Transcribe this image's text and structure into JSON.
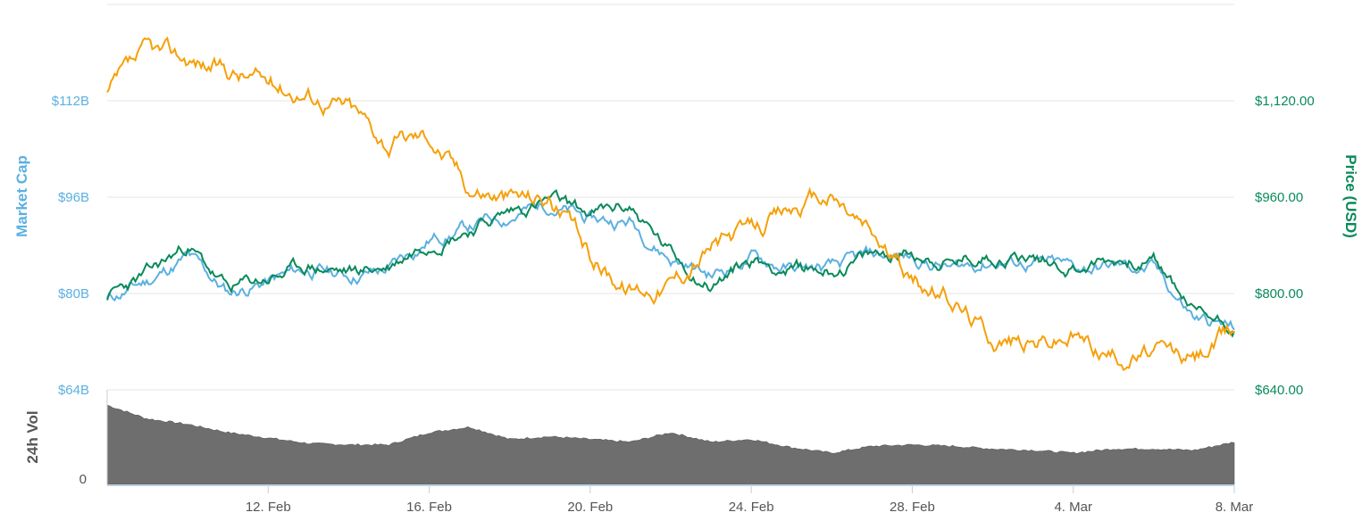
{
  "chart_data": {
    "type": "line",
    "x_start": "2018-02-08",
    "x_end": "2018-03-08",
    "x_ticks": [
      "12. Feb",
      "16. Feb",
      "20. Feb",
      "24. Feb",
      "28. Feb",
      "4. Mar",
      "8. Mar"
    ],
    "left_axis": {
      "label": "Market Cap",
      "ticks": [
        "$64B",
        "$80B",
        "$96B",
        "$112B"
      ],
      "range": [
        64,
        112
      ],
      "color": "#5bb0e0"
    },
    "right_axis": {
      "label": "Price (USD)",
      "ticks": [
        "$640.00",
        "$800.00",
        "$960.00",
        "$1,120.00"
      ],
      "range": [
        640,
        1120
      ],
      "color": "#0a8a5a"
    },
    "volume_axis": {
      "label": "24h Vol",
      "ticks": [
        "0"
      ],
      "color": "#6e6e6e"
    },
    "series": [
      {
        "key": "market_cap",
        "axis": "left",
        "color": "#5bb0e0",
        "x": [
          "2018-02-08",
          "2018-02-09",
          "2018-02-10",
          "2018-02-11",
          "2018-02-12",
          "2018-02-13",
          "2018-02-14",
          "2018-02-15",
          "2018-02-16",
          "2018-02-17",
          "2018-02-18",
          "2018-02-19",
          "2018-02-20",
          "2018-02-21",
          "2018-02-22",
          "2018-02-23",
          "2018-02-24",
          "2018-02-25",
          "2018-02-26",
          "2018-02-27",
          "2018-02-28",
          "2018-03-01",
          "2018-03-02",
          "2018-03-03",
          "2018-03-04",
          "2018-03-05",
          "2018-03-06",
          "2018-03-07",
          "2018-03-08"
        ],
        "values": [
          79,
          82,
          86,
          80,
          82,
          84,
          83,
          84,
          89,
          91,
          93,
          95,
          92,
          92,
          86,
          83,
          86,
          84,
          84,
          86,
          86,
          84,
          85.5,
          85,
          84,
          84.5,
          84,
          76,
          74
        ]
      },
      {
        "key": "price",
        "axis": "right",
        "color": "#0a8a5a",
        "x": [
          "2018-02-08",
          "2018-02-09",
          "2018-02-10",
          "2018-02-11",
          "2018-02-12",
          "2018-02-13",
          "2018-02-14",
          "2018-02-15",
          "2018-02-16",
          "2018-02-17",
          "2018-02-18",
          "2018-02-19",
          "2018-02-20",
          "2018-02-21",
          "2018-02-22",
          "2018-02-23",
          "2018-02-24",
          "2018-02-25",
          "2018-02-26",
          "2018-02-27",
          "2018-02-28",
          "2018-03-01",
          "2018-03-02",
          "2018-03-03",
          "2018-03-04",
          "2018-03-05",
          "2018-03-06",
          "2018-03-07",
          "2018-03-08"
        ],
        "values": [
          795,
          830,
          880,
          805,
          825,
          845,
          835,
          845,
          890,
          910,
          935,
          955,
          930,
          945,
          865,
          815,
          855,
          840,
          840,
          860,
          870,
          850,
          865,
          860,
          845,
          855,
          855,
          770,
          750
        ]
      },
      {
        "key": "volume",
        "axis": "volume",
        "type": "area",
        "color": "#6e6e6e",
        "x": [
          "2018-02-08",
          "2018-02-09",
          "2018-02-10",
          "2018-02-11",
          "2018-02-12",
          "2018-02-13",
          "2018-02-14",
          "2018-02-15",
          "2018-02-16",
          "2018-02-17",
          "2018-02-18",
          "2018-02-19",
          "2018-02-20",
          "2018-02-21",
          "2018-02-22",
          "2018-02-23",
          "2018-02-24",
          "2018-02-25",
          "2018-02-26",
          "2018-02-27",
          "2018-02-28",
          "2018-03-01",
          "2018-03-02",
          "2018-03-03",
          "2018-03-04",
          "2018-03-05",
          "2018-03-06",
          "2018-03-07",
          "2018-03-08"
        ],
        "values": [
          58,
          48,
          44,
          38,
          34,
          30,
          29,
          29,
          38,
          42,
          33,
          35,
          33,
          31,
          38,
          31,
          33,
          27,
          23,
          28,
          29,
          28,
          26,
          25,
          23,
          26,
          26,
          25,
          31
        ]
      },
      {
        "key": "price_btc",
        "color": "#f5a00a",
        "x": [
          "2018-02-08",
          "2018-02-09",
          "2018-02-10",
          "2018-02-11",
          "2018-02-12",
          "2018-02-13",
          "2018-02-14",
          "2018-02-15",
          "2018-02-16",
          "2018-02-17",
          "2018-02-18",
          "2018-02-19",
          "2018-02-20",
          "2018-02-21",
          "2018-02-22",
          "2018-02-23",
          "2018-02-24",
          "2018-02-25",
          "2018-02-26",
          "2018-02-27",
          "2018-02-28",
          "2018-03-01",
          "2018-03-02",
          "2018-03-03",
          "2018-03-04",
          "2018-03-05",
          "2018-03-06",
          "2018-03-07",
          "2018-03-08"
        ],
        "values_on_right_axis_scale": [
          1130,
          1195,
          1190,
          1170,
          1150,
          1135,
          1110,
          1050,
          1065,
          980,
          960,
          960,
          860,
          810,
          820,
          880,
          900,
          940,
          960,
          900,
          820,
          790,
          730,
          720,
          730,
          700,
          700,
          690,
          740
        ]
      }
    ]
  }
}
